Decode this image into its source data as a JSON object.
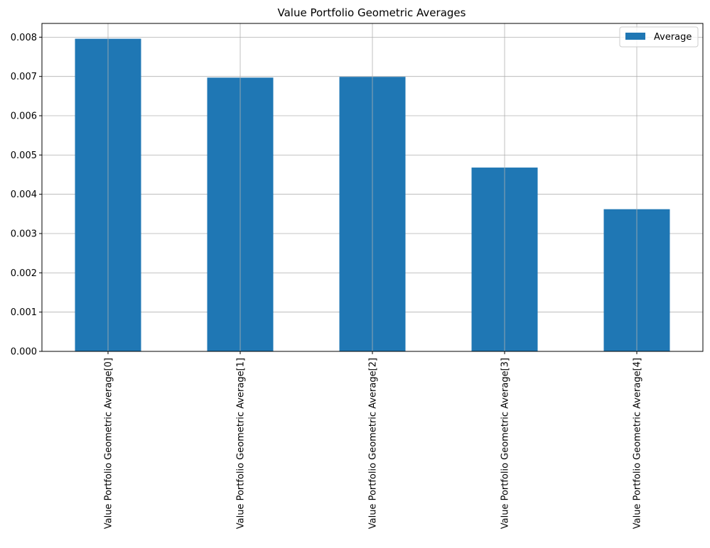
{
  "chart_data": {
    "type": "bar",
    "title": "Value Portfolio Geometric Averages",
    "xlabel": "",
    "ylabel": "",
    "categories": [
      "Value Portfolio Geometric Average[0]",
      "Value Portfolio Geometric Average[1]",
      "Value Portfolio Geometric Average[2]",
      "Value Portfolio Geometric Average[3]",
      "Value Portfolio Geometric Average[4]"
    ],
    "series": [
      {
        "name": "Average",
        "color": "#1f77b4",
        "values": [
          0.00796,
          0.00697,
          0.00699,
          0.00468,
          0.00362
        ]
      }
    ],
    "ylim": [
      0,
      0.00835
    ],
    "yticks": [
      0.0,
      0.001,
      0.002,
      0.003,
      0.004,
      0.005,
      0.006,
      0.007,
      0.008
    ],
    "ytick_labels": [
      "0.000",
      "0.001",
      "0.002",
      "0.003",
      "0.004",
      "0.005",
      "0.006",
      "0.007",
      "0.008"
    ],
    "grid": true,
    "legend": "upper-right",
    "colors": {
      "grid": "#b0b0b0",
      "axis": "#000000"
    }
  }
}
